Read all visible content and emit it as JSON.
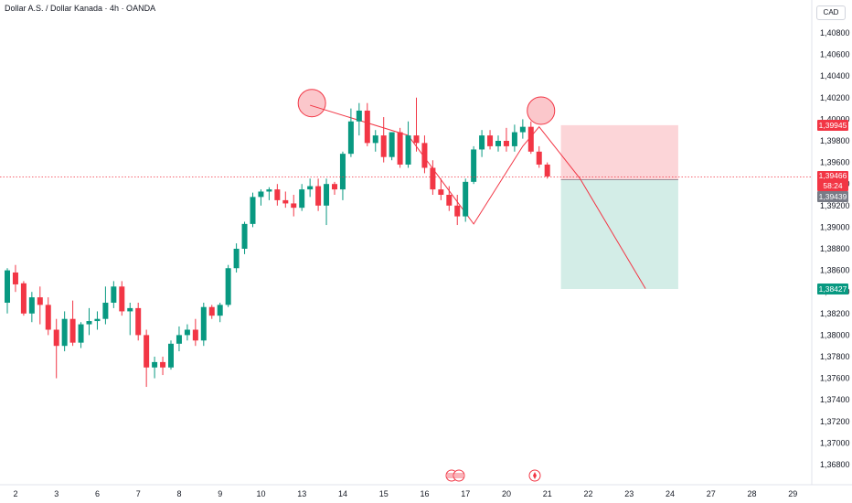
{
  "title": "Dollar A.S. / Dollar Kanada · 4h · OANDA",
  "currency_button": "CAD",
  "price_tags": {
    "stop": {
      "label": "1,39945",
      "color": "#f23645"
    },
    "current": {
      "label": "1,39466",
      "countdown": "58:24",
      "color": "#f23645"
    },
    "entry": {
      "label": "1,39439",
      "color": "#787b86"
    },
    "target": {
      "label": "1,38427",
      "color": "#089981"
    }
  },
  "colors": {
    "up": "#089981",
    "down": "#f23645",
    "risk_zone": "#fcd5d8",
    "reward_zone": "#d3ede7",
    "drawing": "#f23645"
  },
  "chart_data": {
    "type": "candlestick",
    "y_ticks": [
      "1,40800",
      "1,40600",
      "1,40400",
      "1,40200",
      "1,40000",
      "1,39800",
      "1,39600",
      "1,39400",
      "1,39200",
      "1,39000",
      "1,38800",
      "1,38600",
      "1,38400",
      "1,38200",
      "1,38000",
      "1,37800",
      "1,37600",
      "1,37400",
      "1,37200",
      "1,37000",
      "1,36800"
    ],
    "ylim": [
      1.3668,
      1.4098
    ],
    "x_ticks": [
      {
        "label": "2",
        "i": 1
      },
      {
        "label": "3",
        "i": 6
      },
      {
        "label": "6",
        "i": 11
      },
      {
        "label": "7",
        "i": 16
      },
      {
        "label": "8",
        "i": 21
      },
      {
        "label": "9",
        "i": 26
      },
      {
        "label": "10",
        "i": 31
      },
      {
        "label": "13",
        "i": 36
      },
      {
        "label": "14",
        "i": 41
      },
      {
        "label": "15",
        "i": 46
      },
      {
        "label": "16",
        "i": 51
      },
      {
        "label": "17",
        "i": 56
      },
      {
        "label": "20",
        "i": 61
      },
      {
        "label": "21",
        "i": 66
      },
      {
        "label": "22",
        "i": 71
      },
      {
        "label": "23",
        "i": 76
      },
      {
        "label": "24",
        "i": 81
      },
      {
        "label": "27",
        "i": 86
      },
      {
        "label": "28",
        "i": 91
      },
      {
        "label": "29",
        "i": 96
      }
    ],
    "candles": [
      {
        "o": 1.383,
        "h": 1.3862,
        "l": 1.382,
        "c": 1.386
      },
      {
        "o": 1.3858,
        "h": 1.3865,
        "l": 1.384,
        "c": 1.3847
      },
      {
        "o": 1.3848,
        "h": 1.385,
        "l": 1.3818,
        "c": 1.382
      },
      {
        "o": 1.382,
        "h": 1.384,
        "l": 1.3812,
        "c": 1.3835
      },
      {
        "o": 1.3835,
        "h": 1.3845,
        "l": 1.381,
        "c": 1.3828
      },
      {
        "o": 1.3828,
        "h": 1.3835,
        "l": 1.38,
        "c": 1.3805
      },
      {
        "o": 1.3805,
        "h": 1.3815,
        "l": 1.376,
        "c": 1.379
      },
      {
        "o": 1.379,
        "h": 1.3822,
        "l": 1.3785,
        "c": 1.3815
      },
      {
        "o": 1.3815,
        "h": 1.3832,
        "l": 1.379,
        "c": 1.3793
      },
      {
        "o": 1.3793,
        "h": 1.3812,
        "l": 1.3788,
        "c": 1.381
      },
      {
        "o": 1.381,
        "h": 1.3825,
        "l": 1.38,
        "c": 1.3813
      },
      {
        "o": 1.3813,
        "h": 1.3822,
        "l": 1.3805,
        "c": 1.3815
      },
      {
        "o": 1.3815,
        "h": 1.3845,
        "l": 1.381,
        "c": 1.383
      },
      {
        "o": 1.383,
        "h": 1.385,
        "l": 1.3825,
        "c": 1.3845
      },
      {
        "o": 1.3845,
        "h": 1.385,
        "l": 1.3818,
        "c": 1.3822
      },
      {
        "o": 1.3822,
        "h": 1.383,
        "l": 1.38,
        "c": 1.3825
      },
      {
        "o": 1.3825,
        "h": 1.383,
        "l": 1.3795,
        "c": 1.38
      },
      {
        "o": 1.38,
        "h": 1.3805,
        "l": 1.3752,
        "c": 1.377
      },
      {
        "o": 1.377,
        "h": 1.378,
        "l": 1.376,
        "c": 1.3775
      },
      {
        "o": 1.3775,
        "h": 1.378,
        "l": 1.3763,
        "c": 1.377
      },
      {
        "o": 1.377,
        "h": 1.3795,
        "l": 1.3768,
        "c": 1.3792
      },
      {
        "o": 1.3792,
        "h": 1.3808,
        "l": 1.3785,
        "c": 1.38
      },
      {
        "o": 1.38,
        "h": 1.381,
        "l": 1.3795,
        "c": 1.3805
      },
      {
        "o": 1.3805,
        "h": 1.3815,
        "l": 1.379,
        "c": 1.3795
      },
      {
        "o": 1.3795,
        "h": 1.383,
        "l": 1.379,
        "c": 1.3826
      },
      {
        "o": 1.3826,
        "h": 1.3828,
        "l": 1.3815,
        "c": 1.3818
      },
      {
        "o": 1.3818,
        "h": 1.383,
        "l": 1.3812,
        "c": 1.3828
      },
      {
        "o": 1.3828,
        "h": 1.3865,
        "l": 1.3826,
        "c": 1.3862
      },
      {
        "o": 1.3862,
        "h": 1.3885,
        "l": 1.3858,
        "c": 1.388
      },
      {
        "o": 1.388,
        "h": 1.3905,
        "l": 1.3875,
        "c": 1.3903
      },
      {
        "o": 1.3903,
        "h": 1.3932,
        "l": 1.39,
        "c": 1.3928
      },
      {
        "o": 1.3928,
        "h": 1.3935,
        "l": 1.392,
        "c": 1.3933
      },
      {
        "o": 1.3933,
        "h": 1.3937,
        "l": 1.3925,
        "c": 1.3935
      },
      {
        "o": 1.3935,
        "h": 1.394,
        "l": 1.392,
        "c": 1.3925
      },
      {
        "o": 1.3925,
        "h": 1.3933,
        "l": 1.3918,
        "c": 1.3922
      },
      {
        "o": 1.3922,
        "h": 1.393,
        "l": 1.391,
        "c": 1.3918
      },
      {
        "o": 1.3918,
        "h": 1.394,
        "l": 1.3915,
        "c": 1.3935
      },
      {
        "o": 1.3935,
        "h": 1.3945,
        "l": 1.3928,
        "c": 1.3938
      },
      {
        "o": 1.3938,
        "h": 1.3945,
        "l": 1.3915,
        "c": 1.392
      },
      {
        "o": 1.392,
        "h": 1.3945,
        "l": 1.3902,
        "c": 1.394
      },
      {
        "o": 1.394,
        "h": 1.3942,
        "l": 1.393,
        "c": 1.3935
      },
      {
        "o": 1.3935,
        "h": 1.397,
        "l": 1.3925,
        "c": 1.3968
      },
      {
        "o": 1.3968,
        "h": 1.401,
        "l": 1.3965,
        "c": 1.3998
      },
      {
        "o": 1.3998,
        "h": 1.4015,
        "l": 1.3985,
        "c": 1.4008
      },
      {
        "o": 1.4008,
        "h": 1.4015,
        "l": 1.3975,
        "c": 1.3978
      },
      {
        "o": 1.3978,
        "h": 1.399,
        "l": 1.397,
        "c": 1.3985
      },
      {
        "o": 1.3985,
        "h": 1.4002,
        "l": 1.396,
        "c": 1.3965
      },
      {
        "o": 1.3965,
        "h": 1.3988,
        "l": 1.3962,
        "c": 1.3988
      },
      {
        "o": 1.3988,
        "h": 1.3992,
        "l": 1.3955,
        "c": 1.3958
      },
      {
        "o": 1.3958,
        "h": 1.3998,
        "l": 1.3955,
        "c": 1.3985
      },
      {
        "o": 1.3985,
        "h": 1.402,
        "l": 1.397,
        "c": 1.3978
      },
      {
        "o": 1.3978,
        "h": 1.3985,
        "l": 1.395,
        "c": 1.3955
      },
      {
        "o": 1.3955,
        "h": 1.3962,
        "l": 1.393,
        "c": 1.3935
      },
      {
        "o": 1.3935,
        "h": 1.3945,
        "l": 1.3925,
        "c": 1.393
      },
      {
        "o": 1.393,
        "h": 1.3938,
        "l": 1.3915,
        "c": 1.392
      },
      {
        "o": 1.392,
        "h": 1.393,
        "l": 1.3902,
        "c": 1.391
      },
      {
        "o": 1.391,
        "h": 1.3945,
        "l": 1.3905,
        "c": 1.3942
      },
      {
        "o": 1.3942,
        "h": 1.3975,
        "l": 1.394,
        "c": 1.3972
      },
      {
        "o": 1.3972,
        "h": 1.399,
        "l": 1.3965,
        "c": 1.3985
      },
      {
        "o": 1.3985,
        "h": 1.399,
        "l": 1.3972,
        "c": 1.3975
      },
      {
        "o": 1.3975,
        "h": 1.3985,
        "l": 1.397,
        "c": 1.398
      },
      {
        "o": 1.398,
        "h": 1.3992,
        "l": 1.397,
        "c": 1.3975
      },
      {
        "o": 1.3975,
        "h": 1.3995,
        "l": 1.397,
        "c": 1.3988
      },
      {
        "o": 1.3988,
        "h": 1.4,
        "l": 1.3982,
        "c": 1.3993
      },
      {
        "o": 1.3993,
        "h": 1.3998,
        "l": 1.3968,
        "c": 1.397
      },
      {
        "o": 1.397,
        "h": 1.3975,
        "l": 1.3955,
        "c": 1.3958
      },
      {
        "o": 1.3958,
        "h": 1.396,
        "l": 1.3945,
        "c": 1.3947
      }
    ],
    "annotations": {
      "head_and_shoulders_path": [
        [
          37,
          1.4013
        ],
        [
          49,
          1.3985
        ],
        [
          57,
          1.3903
        ],
        [
          63,
          1.3975
        ],
        [
          65,
          1.3993
        ],
        [
          70,
          1.3945
        ],
        [
          78,
          1.3843
        ]
      ],
      "peak_circles": [
        {
          "i": 37,
          "y": 1.4015
        },
        {
          "i": 65,
          "y": 1.4008
        }
      ],
      "position": {
        "start_i": 68,
        "end_i": 82,
        "entry": 1.39439,
        "stop": 1.39945,
        "target": 1.38427
      }
    },
    "current_price": 1.39466
  }
}
